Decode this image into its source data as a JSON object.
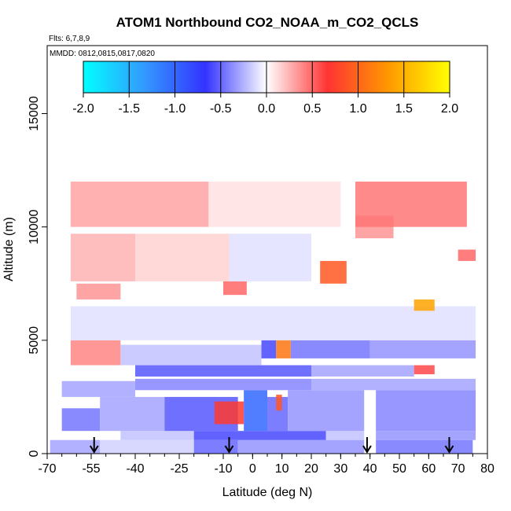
{
  "chart_data": {
    "type": "heatmap",
    "title": "ATOM1 Northbound CO2_NOAA_m_CO2_QCLS",
    "flights_label": "Flts: 6,7,8,9",
    "dates_label": "MMDD: 0812,0815,0817,0820",
    "xlabel": "Latitude (deg N)",
    "ylabel": "Altitude (m)",
    "xlim": [
      -70,
      80
    ],
    "ylim": [
      0,
      18000
    ],
    "x_ticks": [
      -70,
      -55,
      -40,
      -25,
      -10,
      0,
      10,
      20,
      30,
      40,
      50,
      60,
      70,
      80
    ],
    "x_tick_labels": [
      "-70",
      "-55",
      "-40",
      "-25",
      "-10",
      "0",
      "10",
      "20",
      "30",
      "40",
      "50",
      "60",
      "70",
      "80"
    ],
    "y_ticks": [
      0,
      5000,
      10000,
      15000
    ],
    "y_tick_labels": [
      "0",
      "5000",
      "10000",
      "15000"
    ],
    "colorbar": {
      "min": -2.0,
      "max": 2.0,
      "ticks": [
        -2.0,
        -1.5,
        -1.0,
        -0.5,
        0.0,
        0.5,
        1.0,
        1.5,
        2.0
      ],
      "tick_labels": [
        "-2.0",
        "-1.5",
        "-1.0",
        "-0.5",
        "0.0",
        "0.5",
        "1.0",
        "1.5",
        "2.0"
      ],
      "colors": [
        "#00ffff",
        "#3399ff",
        "#3333ff",
        "#ffffff",
        "#ff3333",
        "#ff9900",
        "#ffff00"
      ]
    },
    "profile_markers_lat": [
      -54,
      -8,
      39,
      67
    ],
    "cells": [
      {
        "lat": [
          -69,
          -52
        ],
        "alt": [
          0,
          600
        ],
        "value": -0.3
      },
      {
        "lat": [
          -52,
          -20
        ],
        "alt": [
          0,
          600
        ],
        "value": -0.15
      },
      {
        "lat": [
          -20,
          -5
        ],
        "alt": [
          0,
          600
        ],
        "value": -0.5
      },
      {
        "lat": [
          -5,
          38
        ],
        "alt": [
          0,
          600
        ],
        "value": -0.35
      },
      {
        "lat": [
          42,
          75
        ],
        "alt": [
          0,
          600
        ],
        "value": -0.45
      },
      {
        "lat": [
          -45,
          -20
        ],
        "alt": [
          600,
          1000
        ],
        "value": -0.2
      },
      {
        "lat": [
          -20,
          25
        ],
        "alt": [
          600,
          1000
        ],
        "value": -0.6
      },
      {
        "lat": [
          25,
          38
        ],
        "alt": [
          600,
          1000
        ],
        "value": -0.2
      },
      {
        "lat": [
          42,
          76
        ],
        "alt": [
          600,
          1000
        ],
        "value": -0.35
      },
      {
        "lat": [
          -65,
          -52
        ],
        "alt": [
          1000,
          2000
        ],
        "value": -0.45
      },
      {
        "lat": [
          -52,
          -30
        ],
        "alt": [
          1000,
          2500
        ],
        "value": -0.3
      },
      {
        "lat": [
          -30,
          -5
        ],
        "alt": [
          1000,
          2500
        ],
        "value": -0.55
      },
      {
        "lat": [
          -13,
          -3
        ],
        "alt": [
          1300,
          2300
        ],
        "value": 0.7
      },
      {
        "lat": [
          -3,
          5
        ],
        "alt": [
          1000,
          2800
        ],
        "value": -1.0
      },
      {
        "lat": [
          5,
          12
        ],
        "alt": [
          1000,
          2500
        ],
        "value": -0.5
      },
      {
        "lat": [
          8,
          10
        ],
        "alt": [
          1900,
          2600
        ],
        "value": 0.9
      },
      {
        "lat": [
          12,
          38
        ],
        "alt": [
          1000,
          2800
        ],
        "value": -0.35
      },
      {
        "lat": [
          42,
          76
        ],
        "alt": [
          1000,
          2800
        ],
        "value": -0.4
      },
      {
        "lat": [
          -65,
          -40
        ],
        "alt": [
          2500,
          3200
        ],
        "value": -0.3
      },
      {
        "lat": [
          -40,
          20
        ],
        "alt": [
          2800,
          3300
        ],
        "value": -0.4
      },
      {
        "lat": [
          20,
          76
        ],
        "alt": [
          2800,
          3300
        ],
        "value": -0.3
      },
      {
        "lat": [
          -40,
          20
        ],
        "alt": [
          3400,
          3900
        ],
        "value": -0.55
      },
      {
        "lat": [
          20,
          55
        ],
        "alt": [
          3400,
          3900
        ],
        "value": -0.3
      },
      {
        "lat": [
          55,
          62
        ],
        "alt": [
          3500,
          3900
        ],
        "value": 0.6
      },
      {
        "lat": [
          -62,
          -45
        ],
        "alt": [
          3900,
          5000
        ],
        "value": 0.4
      },
      {
        "lat": [
          -45,
          3
        ],
        "alt": [
          3900,
          4800
        ],
        "value": -0.2
      },
      {
        "lat": [
          3,
          8
        ],
        "alt": [
          4200,
          5000
        ],
        "value": -0.6
      },
      {
        "lat": [
          8,
          13
        ],
        "alt": [
          4200,
          5000
        ],
        "value": 1.1
      },
      {
        "lat": [
          13,
          40
        ],
        "alt": [
          4200,
          5000
        ],
        "value": -0.45
      },
      {
        "lat": [
          40,
          76
        ],
        "alt": [
          4200,
          5000
        ],
        "value": -0.35
      },
      {
        "lat": [
          -62,
          76
        ],
        "alt": [
          5000,
          6500
        ],
        "value": -0.1
      },
      {
        "lat": [
          55,
          62
        ],
        "alt": [
          6300,
          6800
        ],
        "value": 1.4
      },
      {
        "lat": [
          -60,
          -45
        ],
        "alt": [
          6800,
          7500
        ],
        "value": 0.35
      },
      {
        "lat": [
          -10,
          -2
        ],
        "alt": [
          7000,
          7600
        ],
        "value": 0.5
      },
      {
        "lat": [
          23,
          32
        ],
        "alt": [
          7500,
          8500
        ],
        "value": 0.9
      },
      {
        "lat": [
          70,
          76
        ],
        "alt": [
          8500,
          9000
        ],
        "value": 0.5
      },
      {
        "lat": [
          -62,
          -40
        ],
        "alt": [
          7600,
          9700
        ],
        "value": 0.25
      },
      {
        "lat": [
          -40,
          -8
        ],
        "alt": [
          7600,
          9700
        ],
        "value": 0.15
      },
      {
        "lat": [
          -8,
          20
        ],
        "alt": [
          7600,
          9700
        ],
        "value": -0.1
      },
      {
        "lat": [
          35,
          48
        ],
        "alt": [
          9500,
          10500
        ],
        "value": 0.35
      },
      {
        "lat": [
          35,
          73
        ],
        "alt": [
          10000,
          12000
        ],
        "value": 0.45
      },
      {
        "lat": [
          -62,
          -15
        ],
        "alt": [
          10000,
          12000
        ],
        "value": 0.3
      },
      {
        "lat": [
          -15,
          30
        ],
        "alt": [
          10000,
          12000
        ],
        "value": 0.1
      }
    ]
  }
}
